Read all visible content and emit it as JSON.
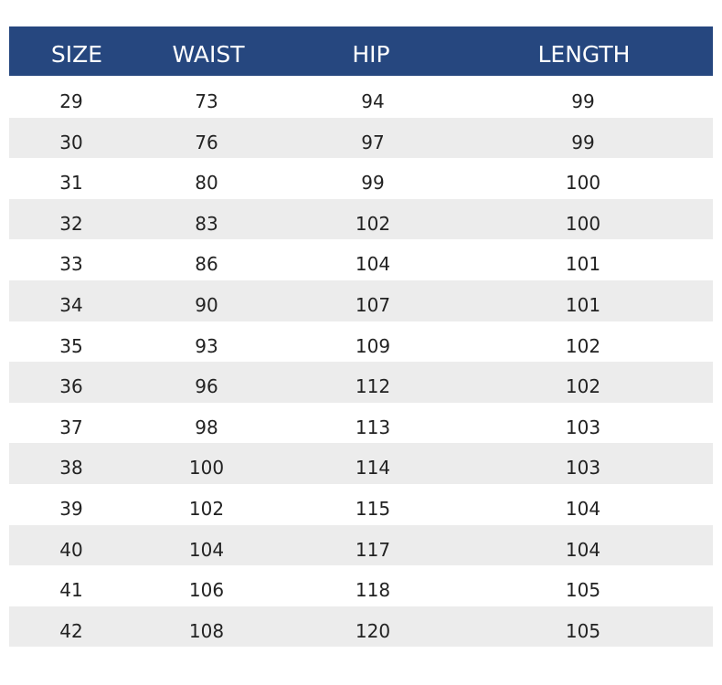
{
  "header": {
    "columns": [
      "SIZE",
      "WAIST",
      "HIP",
      "LENGTH"
    ],
    "background": "#26477f"
  },
  "rows": [
    [
      "29",
      "73",
      "94",
      "99"
    ],
    [
      "30",
      "76",
      "97",
      "99"
    ],
    [
      "31",
      "80",
      "99",
      "100"
    ],
    [
      "32",
      "83",
      "102",
      "100"
    ],
    [
      "33",
      "86",
      "104",
      "101"
    ],
    [
      "34",
      "90",
      "107",
      "101"
    ],
    [
      "35",
      "93",
      "109",
      "102"
    ],
    [
      "36",
      "96",
      "112",
      "102"
    ],
    [
      "37",
      "98",
      "113",
      "103"
    ],
    [
      "38",
      "100",
      "114",
      "103"
    ],
    [
      "39",
      "102",
      "115",
      "104"
    ],
    [
      "40",
      "104",
      "117",
      "104"
    ],
    [
      "41",
      "106",
      "118",
      "105"
    ],
    [
      "42",
      "108",
      "120",
      "105"
    ]
  ]
}
